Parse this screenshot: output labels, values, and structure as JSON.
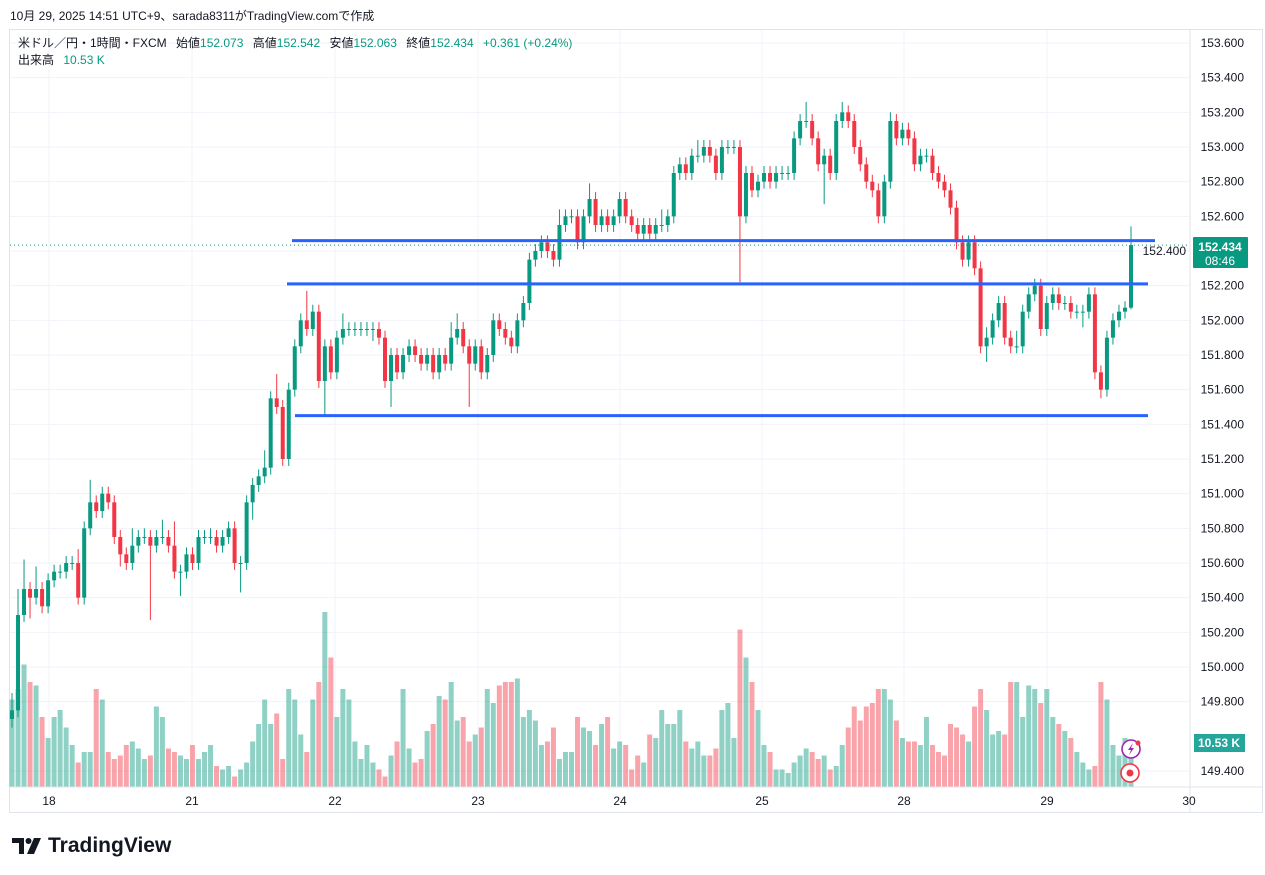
{
  "caption": "10月 29, 2025 14:51 UTC+9、sarada8311がTradingView.comで作成",
  "legend": {
    "symbol": "米ドル／円・1時間・FXCM",
    "open_label": "始値",
    "open": "152.073",
    "high_label": "高値",
    "high": "152.542",
    "low_label": "安値",
    "low": "152.063",
    "close_label": "終値",
    "close": "152.434",
    "change": "+0.361 (+0.24%)",
    "volume_label": "出来高",
    "volume": "10.53 K"
  },
  "price_badge": {
    "price": "152.434",
    "countdown": "08:46"
  },
  "volume_badge": "10.53 K",
  "logo_text": "TradingView",
  "colors": {
    "up": "#089981",
    "down": "#f23645",
    "hline": "#2962ff",
    "grid": "#f0f3fa"
  },
  "icons": [
    "lightning-icon",
    "record-icon",
    "tradingview-logo-icon"
  ],
  "chart_data": {
    "type": "candlestick",
    "ylim": [
      149.3,
      153.7
    ],
    "y_ticks": [
      "153.600",
      "153.400",
      "153.200",
      "153.000",
      "152.800",
      "152.600",
      "152.400",
      "152.200",
      "152.000",
      "151.800",
      "151.600",
      "151.400",
      "151.200",
      "151.000",
      "150.800",
      "150.600",
      "150.400",
      "150.200",
      "150.000",
      "149.800",
      "149.400"
    ],
    "x_ticks": [
      "18",
      "21",
      "22",
      "23",
      "24",
      "25",
      "28",
      "29",
      "30"
    ],
    "grid": true,
    "horizontal_lines": [
      152.46,
      152.21,
      151.45
    ],
    "ohlc": [
      [
        149.7,
        149.85,
        149.65,
        149.75
      ],
      [
        149.75,
        150.45,
        149.71,
        150.3
      ],
      [
        150.3,
        150.62,
        150.26,
        150.45
      ],
      [
        150.45,
        150.49,
        150.28,
        150.4
      ],
      [
        150.4,
        150.58,
        150.36,
        150.45
      ],
      [
        150.45,
        150.49,
        150.31,
        150.35
      ],
      [
        150.35,
        150.54,
        150.31,
        150.5
      ],
      [
        150.5,
        150.59,
        150.46,
        150.55
      ],
      [
        150.55,
        150.59,
        150.51,
        150.55
      ],
      [
        150.55,
        150.64,
        150.51,
        150.6
      ],
      [
        150.6,
        150.64,
        150.56,
        150.6
      ],
      [
        150.6,
        150.68,
        150.36,
        150.4
      ],
      [
        150.4,
        150.84,
        150.36,
        150.8
      ],
      [
        150.8,
        151.08,
        150.76,
        150.95
      ],
      [
        150.95,
        150.99,
        150.86,
        150.9
      ],
      [
        150.9,
        151.04,
        150.86,
        151.0
      ],
      [
        151.0,
        151.04,
        150.91,
        150.95
      ],
      [
        150.95,
        150.99,
        150.71,
        150.75
      ],
      [
        150.75,
        150.79,
        150.58,
        150.65
      ],
      [
        150.65,
        150.69,
        150.56,
        150.6
      ],
      [
        150.6,
        150.8,
        150.56,
        150.7
      ],
      [
        150.7,
        150.79,
        150.66,
        150.75
      ],
      [
        150.75,
        150.8,
        150.71,
        150.75
      ],
      [
        150.75,
        150.79,
        150.27,
        150.7
      ],
      [
        150.7,
        150.79,
        150.66,
        150.75
      ],
      [
        150.75,
        150.85,
        150.71,
        150.75
      ],
      [
        150.75,
        150.79,
        150.66,
        150.7
      ],
      [
        150.7,
        150.84,
        150.51,
        150.55
      ],
      [
        150.55,
        150.59,
        150.41,
        150.55
      ],
      [
        150.55,
        150.69,
        150.51,
        150.65
      ],
      [
        150.65,
        150.69,
        150.56,
        150.6
      ],
      [
        150.6,
        150.79,
        150.56,
        150.75
      ],
      [
        150.75,
        150.79,
        150.71,
        150.75
      ],
      [
        150.75,
        150.8,
        150.71,
        150.75
      ],
      [
        150.75,
        150.79,
        150.66,
        150.7
      ],
      [
        150.7,
        150.79,
        150.66,
        150.75
      ],
      [
        150.75,
        150.84,
        150.71,
        150.8
      ],
      [
        150.8,
        150.84,
        150.56,
        150.6
      ],
      [
        150.6,
        150.64,
        150.43,
        150.6
      ],
      [
        150.6,
        150.99,
        150.56,
        150.95
      ],
      [
        150.95,
        151.09,
        150.85,
        151.05
      ],
      [
        151.05,
        151.14,
        151.01,
        151.1
      ],
      [
        151.1,
        151.25,
        151.06,
        151.15
      ],
      [
        151.15,
        151.59,
        151.11,
        151.55
      ],
      [
        151.55,
        151.69,
        151.46,
        151.5
      ],
      [
        151.5,
        151.54,
        151.16,
        151.2
      ],
      [
        151.2,
        151.64,
        151.16,
        151.6
      ],
      [
        151.6,
        151.89,
        151.56,
        151.85
      ],
      [
        151.85,
        152.04,
        151.81,
        152.0
      ],
      [
        152.0,
        152.17,
        151.91,
        151.95
      ],
      [
        151.95,
        152.09,
        151.91,
        152.05
      ],
      [
        152.05,
        152.09,
        151.61,
        151.65
      ],
      [
        151.65,
        151.89,
        151.45,
        151.85
      ],
      [
        151.85,
        151.89,
        151.66,
        151.7
      ],
      [
        151.7,
        151.94,
        151.66,
        151.9
      ],
      [
        151.9,
        152.04,
        151.86,
        151.95
      ],
      [
        151.95,
        151.99,
        151.91,
        151.95
      ],
      [
        151.95,
        151.99,
        151.91,
        151.95
      ],
      [
        151.95,
        151.99,
        151.91,
        151.95
      ],
      [
        151.95,
        151.99,
        151.91,
        151.95
      ],
      [
        151.95,
        151.99,
        151.88,
        151.95
      ],
      [
        151.95,
        151.99,
        151.86,
        151.9
      ],
      [
        151.9,
        151.94,
        151.61,
        151.65
      ],
      [
        151.65,
        151.84,
        151.5,
        151.8
      ],
      [
        151.8,
        151.84,
        151.66,
        151.7
      ],
      [
        151.7,
        151.84,
        151.66,
        151.8
      ],
      [
        151.8,
        151.89,
        151.76,
        151.85
      ],
      [
        151.85,
        151.89,
        151.76,
        151.8
      ],
      [
        151.8,
        151.84,
        151.71,
        151.75
      ],
      [
        151.75,
        151.84,
        151.71,
        151.8
      ],
      [
        151.8,
        151.84,
        151.66,
        151.7
      ],
      [
        151.7,
        151.84,
        151.66,
        151.8
      ],
      [
        151.8,
        151.84,
        151.71,
        151.75
      ],
      [
        151.75,
        151.99,
        151.71,
        151.9
      ],
      [
        151.9,
        152.04,
        151.86,
        151.95
      ],
      [
        151.95,
        151.99,
        151.81,
        151.85
      ],
      [
        151.85,
        151.89,
        151.5,
        151.75
      ],
      [
        151.75,
        151.89,
        151.71,
        151.85
      ],
      [
        151.85,
        151.89,
        151.66,
        151.7
      ],
      [
        151.7,
        151.84,
        151.66,
        151.8
      ],
      [
        151.8,
        152.04,
        151.76,
        152.0
      ],
      [
        152.0,
        152.04,
        151.91,
        151.95
      ],
      [
        151.95,
        151.99,
        151.86,
        151.9
      ],
      [
        151.9,
        151.94,
        151.81,
        151.85
      ],
      [
        151.85,
        152.04,
        151.81,
        152.0
      ],
      [
        152.0,
        152.14,
        151.96,
        152.1
      ],
      [
        152.1,
        152.39,
        152.06,
        152.35
      ],
      [
        152.35,
        152.44,
        152.31,
        152.4
      ],
      [
        152.4,
        152.49,
        152.36,
        152.45
      ],
      [
        152.45,
        152.49,
        152.36,
        152.4
      ],
      [
        152.4,
        152.44,
        152.31,
        152.35
      ],
      [
        152.35,
        152.64,
        152.31,
        152.55
      ],
      [
        152.55,
        152.64,
        152.51,
        152.6
      ],
      [
        152.6,
        152.64,
        152.56,
        152.6
      ],
      [
        152.6,
        152.64,
        152.41,
        152.45
      ],
      [
        152.45,
        152.64,
        152.41,
        152.6
      ],
      [
        152.6,
        152.79,
        152.56,
        152.7
      ],
      [
        152.7,
        152.74,
        152.51,
        152.55
      ],
      [
        152.55,
        152.64,
        152.51,
        152.6
      ],
      [
        152.6,
        152.64,
        152.51,
        152.55
      ],
      [
        152.55,
        152.64,
        152.51,
        152.6
      ],
      [
        152.6,
        152.74,
        152.56,
        152.7
      ],
      [
        152.7,
        152.74,
        152.56,
        152.6
      ],
      [
        152.6,
        152.64,
        152.51,
        152.55
      ],
      [
        152.55,
        152.59,
        152.46,
        152.5
      ],
      [
        152.5,
        152.59,
        152.46,
        152.55
      ],
      [
        152.55,
        152.59,
        152.46,
        152.5
      ],
      [
        152.5,
        152.59,
        152.46,
        152.55
      ],
      [
        152.55,
        152.64,
        152.51,
        152.55
      ],
      [
        152.55,
        152.64,
        152.51,
        152.6
      ],
      [
        152.6,
        152.89,
        152.56,
        152.85
      ],
      [
        152.85,
        152.94,
        152.81,
        152.9
      ],
      [
        152.9,
        152.94,
        152.81,
        152.85
      ],
      [
        152.85,
        152.99,
        152.81,
        152.95
      ],
      [
        152.95,
        153.04,
        152.91,
        152.95
      ],
      [
        152.95,
        153.04,
        152.91,
        153.0
      ],
      [
        153.0,
        153.04,
        152.91,
        152.95
      ],
      [
        152.95,
        152.99,
        152.81,
        152.85
      ],
      [
        152.85,
        153.04,
        152.81,
        153.0
      ],
      [
        153.0,
        153.04,
        152.96,
        153.0
      ],
      [
        153.0,
        153.04,
        152.96,
        153.0
      ],
      [
        153.0,
        153.04,
        152.22,
        152.6
      ],
      [
        152.6,
        152.89,
        152.56,
        152.85
      ],
      [
        152.85,
        152.89,
        152.71,
        152.75
      ],
      [
        152.75,
        152.84,
        152.71,
        152.8
      ],
      [
        152.8,
        152.89,
        152.76,
        152.85
      ],
      [
        152.85,
        152.89,
        152.76,
        152.8
      ],
      [
        152.8,
        152.89,
        152.76,
        152.85
      ],
      [
        152.85,
        152.89,
        152.81,
        152.85
      ],
      [
        152.85,
        152.89,
        152.81,
        152.85
      ],
      [
        152.85,
        153.09,
        152.81,
        153.05
      ],
      [
        153.05,
        153.19,
        153.01,
        153.15
      ],
      [
        153.15,
        153.26,
        153.11,
        153.15
      ],
      [
        153.15,
        153.19,
        153.01,
        153.05
      ],
      [
        153.05,
        153.09,
        152.86,
        152.9
      ],
      [
        152.9,
        152.99,
        152.67,
        152.95
      ],
      [
        152.95,
        152.99,
        152.81,
        152.85
      ],
      [
        152.85,
        153.19,
        152.81,
        153.15
      ],
      [
        153.15,
        153.26,
        153.11,
        153.2
      ],
      [
        153.2,
        153.24,
        153.11,
        153.15
      ],
      [
        153.15,
        153.19,
        152.96,
        153.0
      ],
      [
        153.0,
        153.04,
        152.86,
        152.9
      ],
      [
        152.9,
        152.94,
        152.76,
        152.8
      ],
      [
        152.8,
        152.84,
        152.71,
        152.75
      ],
      [
        152.75,
        152.79,
        152.56,
        152.6
      ],
      [
        152.6,
        152.84,
        152.56,
        152.8
      ],
      [
        152.8,
        153.2,
        152.76,
        153.15
      ],
      [
        153.15,
        153.19,
        153.01,
        153.05
      ],
      [
        153.05,
        153.14,
        153.01,
        153.1
      ],
      [
        153.1,
        153.14,
        153.01,
        153.05
      ],
      [
        153.05,
        153.09,
        152.86,
        152.9
      ],
      [
        152.9,
        152.99,
        152.86,
        152.95
      ],
      [
        152.95,
        152.99,
        152.91,
        152.95
      ],
      [
        152.95,
        152.99,
        152.81,
        152.85
      ],
      [
        152.85,
        152.89,
        152.76,
        152.8
      ],
      [
        152.8,
        152.84,
        152.71,
        152.75
      ],
      [
        152.75,
        152.79,
        152.61,
        152.65
      ],
      [
        152.65,
        152.69,
        152.41,
        152.45
      ],
      [
        152.45,
        152.49,
        152.31,
        152.35
      ],
      [
        152.35,
        152.49,
        152.31,
        152.45
      ],
      [
        152.45,
        152.49,
        152.26,
        152.3
      ],
      [
        152.3,
        152.34,
        151.81,
        151.85
      ],
      [
        151.85,
        151.96,
        151.76,
        151.9
      ],
      [
        151.9,
        152.04,
        151.86,
        152.0
      ],
      [
        152.0,
        152.14,
        151.96,
        152.1
      ],
      [
        152.1,
        152.14,
        151.86,
        151.9
      ],
      [
        151.9,
        151.94,
        151.81,
        151.85
      ],
      [
        151.85,
        151.94,
        151.81,
        151.85
      ],
      [
        151.85,
        152.09,
        151.81,
        152.05
      ],
      [
        152.05,
        152.19,
        152.01,
        152.15
      ],
      [
        152.15,
        152.24,
        152.11,
        152.2
      ],
      [
        152.2,
        152.24,
        151.91,
        151.95
      ],
      [
        151.95,
        152.14,
        151.91,
        152.1
      ],
      [
        152.1,
        152.19,
        152.06,
        152.15
      ],
      [
        152.15,
        152.19,
        152.06,
        152.1
      ],
      [
        152.1,
        152.14,
        152.06,
        152.1
      ],
      [
        152.1,
        152.14,
        152.01,
        152.05
      ],
      [
        152.05,
        152.09,
        152.01,
        152.05
      ],
      [
        152.05,
        152.09,
        151.96,
        152.05
      ],
      [
        152.05,
        152.19,
        152.01,
        152.15
      ],
      [
        152.15,
        152.19,
        151.66,
        151.7
      ],
      [
        151.7,
        151.74,
        151.55,
        151.6
      ],
      [
        151.6,
        151.94,
        151.56,
        151.9
      ],
      [
        151.9,
        152.04,
        151.86,
        152.0
      ],
      [
        152.0,
        152.09,
        151.96,
        152.05
      ],
      [
        152.05,
        152.11,
        152.01,
        152.073
      ],
      [
        152.073,
        152.542,
        152.063,
        152.434
      ]
    ],
    "volume_k": [
      25,
      28,
      35,
      30,
      29,
      20,
      14,
      20,
      22,
      17,
      12,
      7,
      10,
      10,
      28,
      25,
      10,
      8,
      9,
      12,
      13,
      11,
      8,
      9,
      23,
      20,
      11,
      10,
      9,
      8,
      12,
      8,
      10,
      12,
      6,
      5,
      6,
      3,
      5,
      7,
      13,
      18,
      25,
      18,
      21,
      8,
      28,
      25,
      15,
      10,
      25,
      30,
      50,
      37,
      20,
      28,
      25,
      13,
      8,
      12,
      7,
      5,
      3,
      9,
      13,
      28,
      11,
      7,
      8,
      16,
      18,
      26,
      25,
      30,
      19,
      20,
      13,
      15,
      17,
      28,
      24,
      29,
      30,
      30,
      31,
      20,
      22,
      19,
      12,
      13,
      17,
      8,
      10,
      10,
      20,
      17,
      16,
      12,
      18,
      20,
      11,
      13,
      12,
      5,
      9,
      7,
      15,
      14,
      22,
      18,
      18,
      22,
      13,
      11,
      13,
      9,
      9,
      11,
      22,
      24,
      14,
      45,
      37,
      30,
      22,
      12,
      10,
      5,
      5,
      4,
      7,
      9,
      11,
      10,
      8,
      9,
      5,
      6,
      12,
      17,
      23,
      19,
      23,
      24,
      28,
      28,
      25,
      19,
      14,
      13,
      13,
      12,
      20,
      12,
      10,
      9,
      18,
      17,
      15,
      13,
      23,
      28,
      22,
      15,
      16,
      15,
      30,
      30,
      20,
      29,
      28,
      24,
      28,
      20,
      18,
      16,
      14,
      10,
      7,
      5,
      6,
      30,
      25,
      12,
      9,
      14,
      10.53
    ]
  }
}
